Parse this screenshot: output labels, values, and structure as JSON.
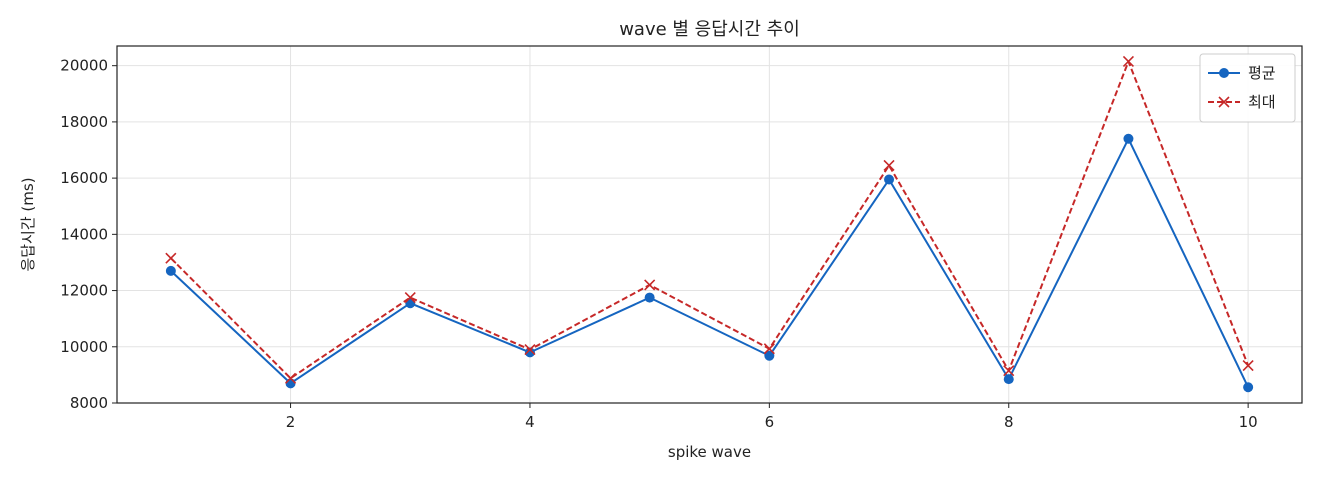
{
  "chart_data": {
    "type": "line",
    "title": "wave 별 응답시간 추이",
    "xlabel": "spike wave",
    "ylabel": "응답시간 (ms)",
    "x": [
      1,
      2,
      3,
      4,
      5,
      6,
      7,
      8,
      9,
      10
    ],
    "xlim": [
      0.55,
      10.45
    ],
    "ylim": [
      8000,
      20700
    ],
    "xticks": [
      2,
      4,
      6,
      8,
      10
    ],
    "yticks": [
      8000,
      10000,
      12000,
      14000,
      16000,
      18000,
      20000
    ],
    "grid": true,
    "legend_position": "top-right",
    "series": [
      {
        "name": "평균",
        "values": [
          12700,
          8700,
          11550,
          9800,
          11750,
          9680,
          15950,
          8850,
          17400,
          8560
        ],
        "color": "#1565c0",
        "line_style": "solid",
        "marker": "circle"
      },
      {
        "name": "최대",
        "values": [
          13150,
          8880,
          11750,
          9900,
          12200,
          9930,
          16450,
          9150,
          20150,
          9330
        ],
        "color": "#c62828",
        "line_style": "dashed",
        "marker": "x"
      }
    ]
  }
}
